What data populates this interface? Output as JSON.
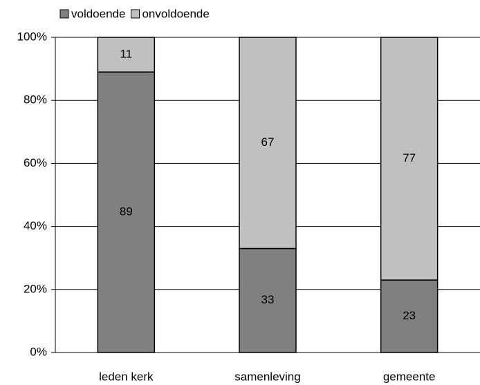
{
  "chart_data": {
    "type": "stacked_bar",
    "categories": [
      "leden kerk",
      "samenleving",
      "gemeente"
    ],
    "series": [
      {
        "name": "voldoende",
        "color": "#808080",
        "values": [
          89,
          33,
          23
        ]
      },
      {
        "name": "onvoldoende",
        "color": "#c0c0c0",
        "values": [
          11,
          67,
          77
        ]
      }
    ],
    "ylim": [
      0,
      100
    ],
    "yticks": [
      {
        "value": 0,
        "label": "0%"
      },
      {
        "value": 20,
        "label": "20%"
      },
      {
        "value": 40,
        "label": "40%"
      },
      {
        "value": 60,
        "label": "60%"
      },
      {
        "value": 80,
        "label": "80%"
      },
      {
        "value": 100,
        "label": "100%"
      }
    ],
    "grid": true,
    "legend": "top-left"
  }
}
